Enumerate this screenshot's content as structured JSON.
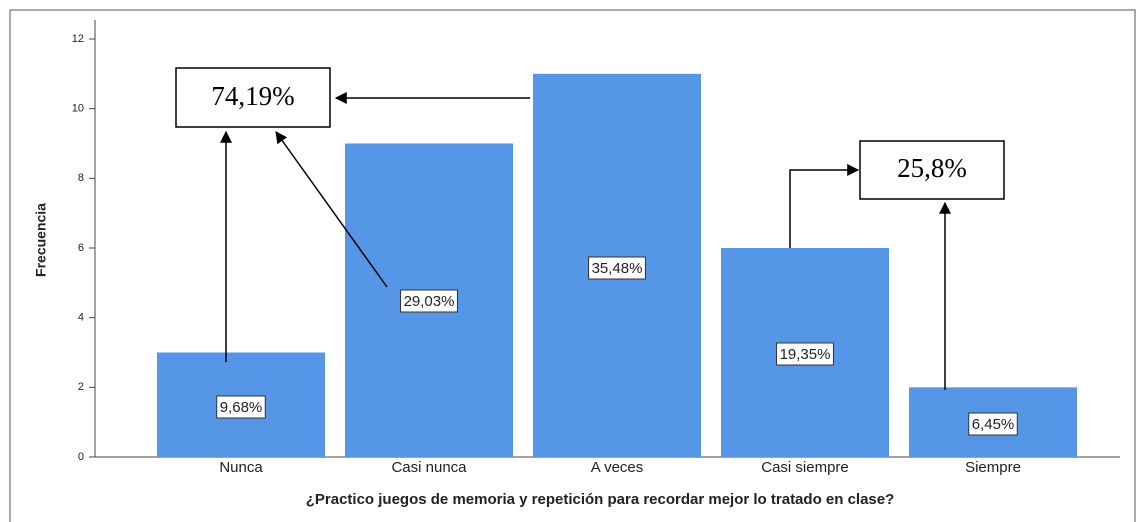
{
  "chart_data": {
    "type": "bar",
    "x_label": "¿Practico juegos de memoria y repetición para recordar mejor lo tratado en clase?",
    "y_label": "Frecuencia",
    "categories": [
      "Nunca",
      "Casi nunca",
      "A veces",
      "Casi siempre",
      "Siempre"
    ],
    "values": [
      3,
      9,
      11,
      6,
      2
    ],
    "percent_labels": [
      "9,68%",
      "29,03%",
      "35,48%",
      "19,35%",
      "6,45%"
    ],
    "annotations": [
      "74,19%",
      "25,8%"
    ],
    "color": "#5596e6",
    "ylim": [
      0,
      12
    ],
    "yticks": [
      0,
      2,
      4,
      6,
      8,
      10,
      12
    ],
    "grid": false
  }
}
